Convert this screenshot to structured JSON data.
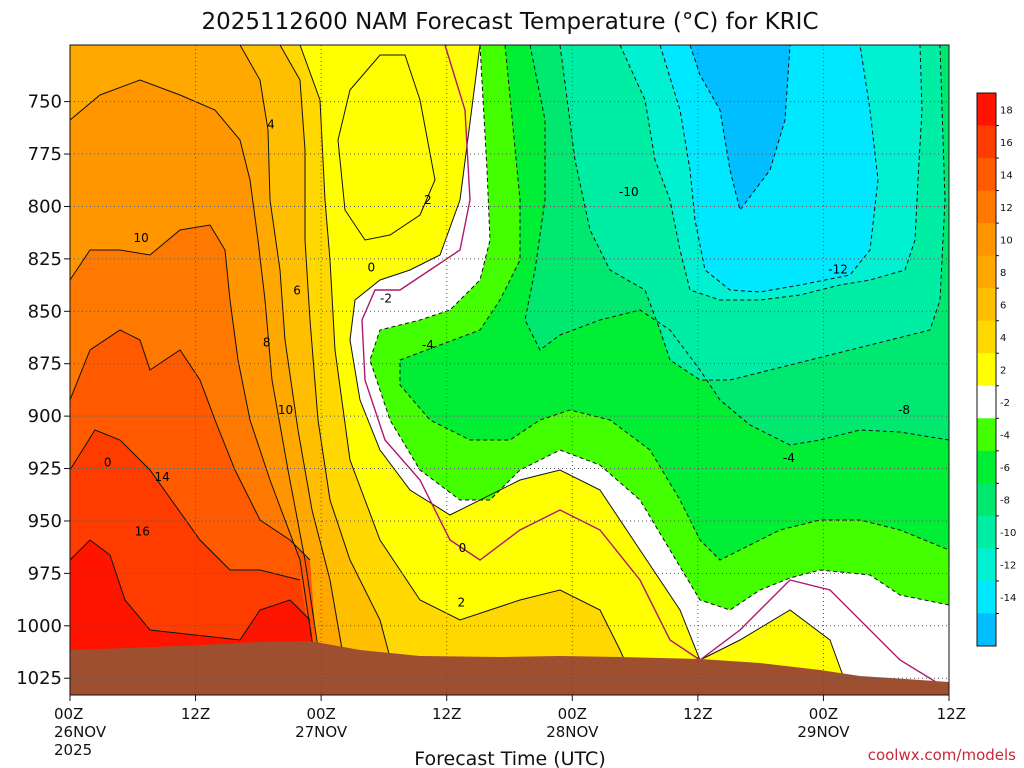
{
  "chart_data": {
    "type": "heatmap",
    "title": "2025112600 NAM Forecast Temperature (°C) for KRIC",
    "xlabel": "Forecast Time (UTC)",
    "ylabel": "",
    "x_ticks": [
      {
        "label": "00Z",
        "date": "26NOV",
        "year": "2025",
        "hour": 0
      },
      {
        "label": "12Z",
        "date": "",
        "year": "",
        "hour": 12
      },
      {
        "label": "00Z",
        "date": "27NOV",
        "year": "",
        "hour": 24
      },
      {
        "label": "12Z",
        "date": "",
        "year": "",
        "hour": 36
      },
      {
        "label": "00Z",
        "date": "28NOV",
        "year": "",
        "hour": 48
      },
      {
        "label": "12Z",
        "date": "",
        "year": "",
        "hour": 60
      },
      {
        "label": "00Z",
        "date": "29NOV",
        "year": "",
        "hour": 72
      },
      {
        "label": "12Z",
        "date": "",
        "year": "",
        "hour": 84
      }
    ],
    "xlim": [
      0,
      84
    ],
    "y_ticks": [
      "750",
      "775",
      "800",
      "825",
      "850",
      "875",
      "900",
      "925",
      "950",
      "975",
      "1000",
      "1025"
    ],
    "ylim": [
      1033,
      723
    ],
    "y_scale": "pressure (inverted)",
    "grid": true,
    "colorbar": {
      "labels": [
        "18",
        "16",
        "14",
        "12",
        "10",
        "8",
        "6",
        "4",
        "2",
        "-2",
        "-4",
        "-6",
        "-8",
        "-10",
        "-12",
        "-14"
      ],
      "colors": [
        "#ff1400",
        "#ff3c00",
        "#ff5a00",
        "#ff7800",
        "#ff9600",
        "#ffa800",
        "#ffbe00",
        "#ffd800",
        "#ffff00",
        "#ffffff",
        "#44ff00",
        "#00ee33",
        "#00e870",
        "#00eea4",
        "#00f0d2",
        "#00e8ff",
        "#00beff"
      ]
    },
    "contour_labels": [
      {
        "text": "4",
        "hour": 19.2,
        "p": 761
      },
      {
        "text": "2",
        "hour": 34.2,
        "p": 797
      },
      {
        "text": "0",
        "hour": 28.8,
        "p": 829
      },
      {
        "text": "-2",
        "hour": 30.2,
        "p": 844
      },
      {
        "text": "-4",
        "hour": 34.2,
        "p": 866
      },
      {
        "text": "6",
        "hour": 21.7,
        "p": 840
      },
      {
        "text": "8",
        "hour": 18.8,
        "p": 865
      },
      {
        "text": "10",
        "hour": 6.8,
        "p": 815
      },
      {
        "text": "10",
        "hour": 20.6,
        "p": 897
      },
      {
        "text": "0",
        "hour": 3.6,
        "p": 922
      },
      {
        "text": "14",
        "hour": 8.8,
        "p": 929
      },
      {
        "text": "16",
        "hour": 6.9,
        "p": 955
      },
      {
        "text": "0",
        "hour": 37.5,
        "p": 963
      },
      {
        "text": "2",
        "hour": 37.4,
        "p": 989
      },
      {
        "text": "-10",
        "hour": 53.4,
        "p": 793
      },
      {
        "text": "-12",
        "hour": 73.4,
        "p": 830
      },
      {
        "text": "-8",
        "hour": 79.7,
        "p": 897
      },
      {
        "text": "-4",
        "hour": 68.7,
        "p": 920
      }
    ],
    "terrain_color": "#9e4f2f"
  },
  "credit": "coolwx.com/models"
}
